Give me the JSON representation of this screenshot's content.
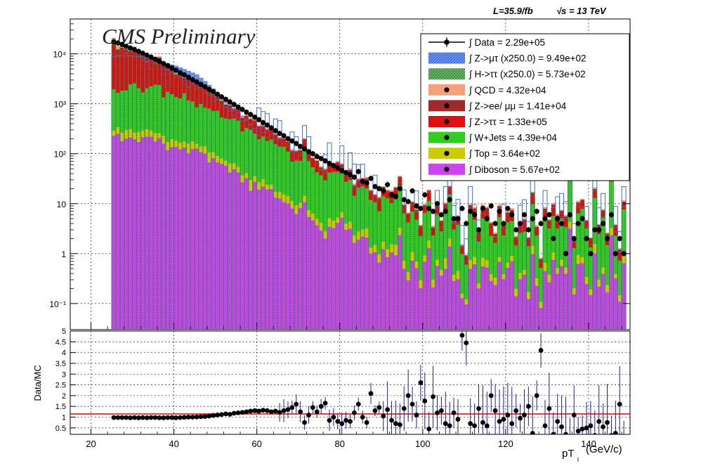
{
  "header": {
    "lumi": "L=35.9/fb",
    "energy": "√s = 13 TeV"
  },
  "branding": {
    "preliminary": "CMS Preliminary"
  },
  "colors": {
    "data": "#000000",
    "signal_mt": "#3b6fd8",
    "signal_htt": "#3a8a3a",
    "qcd": "#f4a07a",
    "zll": "#a02a2a",
    "ztt": "#e01010",
    "wjets": "#33cc22",
    "top": "#cccc00",
    "diboson": "#cc44ee",
    "ratio_line": "#e00000",
    "err_bar": "#1e1e9e"
  },
  "legend": [
    {
      "key": "data",
      "label": "∫ Data = 2.29e+05",
      "style": "marker-line"
    },
    {
      "key": "signal_mt",
      "label": "∫ Z->μτ (x250.0) = 9.49e+02",
      "style": "hatch"
    },
    {
      "key": "signal_htt",
      "label": "∫ H->ττ (x250.0) = 5.73e+02",
      "style": "hatch"
    },
    {
      "key": "qcd",
      "label": "∫ QCD = 4.32e+04",
      "style": "fill-marker"
    },
    {
      "key": "zll",
      "label": "∫ Z->ee/ μμ = 1.41e+04",
      "style": "fill-marker"
    },
    {
      "key": "ztt",
      "label": "∫ Z->ττ = 1.33e+05",
      "style": "fill-marker"
    },
    {
      "key": "wjets",
      "label": "∫ W+Jets = 4.39e+04",
      "style": "fill-marker"
    },
    {
      "key": "top",
      "label": "∫ Top = 3.64e+02",
      "style": "fill-marker"
    },
    {
      "key": "diboson",
      "label": "∫ Diboson = 5.67e+02",
      "style": "fill-marker"
    }
  ],
  "axes": {
    "xlabel": "pT",
    "xlabel_sub": "l",
    "xlabel_unit": "(GeV/c)",
    "ratio_ylabel": "Data/MC",
    "x_ticks": [
      "20",
      "40",
      "60",
      "80",
      "100",
      "120",
      "140"
    ],
    "y_ticks": [
      "10⁻¹",
      "1",
      "10",
      "10²",
      "10³",
      "10⁴"
    ],
    "ratio_ticks": [
      "0.5",
      "1",
      "1.5",
      "2",
      "2.5",
      "3",
      "3.5",
      "4",
      "4.5",
      "5"
    ]
  },
  "chart_data": {
    "type": "histogram-stack",
    "x_range": [
      15,
      150
    ],
    "y_range": [
      0.03,
      50000
    ],
    "y_scale": "log",
    "ratio_range": [
      0.2,
      5.0
    ],
    "bin_width": 1,
    "x_start": 25,
    "x_end": 149,
    "grid": true,
    "legend_position": "top-right",
    "data_points": [
      [
        25.5,
        17500
      ],
      [
        26.5,
        16500
      ],
      [
        27.5,
        15500
      ],
      [
        28.5,
        14200
      ],
      [
        29.5,
        13100
      ],
      [
        30.5,
        12200
      ],
      [
        31.5,
        11200
      ],
      [
        32.5,
        10300
      ],
      [
        33.5,
        9400
      ],
      [
        34.5,
        8600
      ],
      [
        35.5,
        7800
      ],
      [
        36.5,
        7100
      ],
      [
        37.5,
        6400
      ],
      [
        38.5,
        5800
      ],
      [
        39.5,
        5200
      ],
      [
        40.5,
        4700
      ],
      [
        41.5,
        4200
      ],
      [
        42.5,
        3800
      ],
      [
        43.5,
        3400
      ],
      [
        44.5,
        3050
      ],
      [
        45.5,
        2750
      ],
      [
        46.5,
        2450
      ],
      [
        47.5,
        2200
      ],
      [
        48.5,
        1950
      ],
      [
        49.5,
        1750
      ],
      [
        50.5,
        1550
      ],
      [
        51.5,
        1380
      ],
      [
        52.5,
        1230
      ],
      [
        53.5,
        1090
      ],
      [
        54.5,
        970
      ],
      [
        55.5,
        860
      ],
      [
        56.5,
        770
      ],
      [
        57.5,
        680
      ],
      [
        58.5,
        610
      ],
      [
        59.5,
        540
      ],
      [
        60.5,
        480
      ],
      [
        61.5,
        420
      ],
      [
        62.5,
        375
      ],
      [
        63.5,
        330
      ],
      [
        64.5,
        290
      ],
      [
        65.5,
        255
      ],
      [
        66.5,
        230
      ],
      [
        67.5,
        200
      ],
      [
        68.5,
        180
      ],
      [
        69.5,
        160
      ],
      [
        70.5,
        140
      ],
      [
        71.5,
        125
      ],
      [
        72.5,
        110
      ],
      [
        73.5,
        100
      ],
      [
        74.5,
        88
      ],
      [
        75.5,
        80
      ],
      [
        76.5,
        72
      ],
      [
        77.5,
        64
      ],
      [
        78.5,
        58
      ],
      [
        79.5,
        52
      ],
      [
        80.5,
        46
      ],
      [
        81.5,
        42
      ],
      [
        82.5,
        38
      ],
      [
        83.5,
        34
      ],
      [
        84.5,
        44
      ],
      [
        85.5,
        28
      ],
      [
        86.5,
        26
      ],
      [
        87.5,
        32
      ],
      [
        88.5,
        22
      ],
      [
        89.5,
        20
      ],
      [
        90.5,
        18
      ],
      [
        91.5,
        24
      ],
      [
        92.5,
        15
      ],
      [
        93.5,
        14
      ],
      [
        94.5,
        20
      ],
      [
        95.5,
        12
      ],
      [
        96.5,
        11
      ],
      [
        97.5,
        18
      ],
      [
        98.5,
        9
      ],
      [
        99.5,
        8
      ],
      [
        100.5,
        15
      ],
      [
        101.5,
        8
      ],
      [
        102.5,
        7
      ],
      [
        103.5,
        10
      ],
      [
        104.5,
        6
      ],
      [
        105.5,
        7
      ],
      [
        106.5,
        12
      ],
      [
        107.5,
        5
      ],
      [
        108.5,
        5
      ],
      [
        109.5,
        8
      ],
      [
        110.5,
        4
      ],
      [
        111.5,
        7
      ],
      [
        112.5,
        6
      ],
      [
        113.5,
        3
      ],
      [
        114.5,
        8
      ],
      [
        115.5,
        5
      ],
      [
        116.5,
        9
      ],
      [
        117.5,
        4
      ],
      [
        118.5,
        7
      ],
      [
        119.5,
        4
      ],
      [
        120.5,
        8
      ],
      [
        121.5,
        6
      ],
      [
        122.5,
        3
      ],
      [
        123.5,
        4
      ],
      [
        124.5,
        6
      ],
      [
        125.5,
        3
      ],
      [
        126.5,
        5
      ],
      [
        127.5,
        7
      ],
      [
        128.5,
        4
      ],
      [
        129.5,
        5
      ],
      [
        130.5,
        6
      ],
      [
        131.5,
        2
      ],
      [
        132.5,
        5
      ],
      [
        133.5,
        4
      ],
      [
        134.5,
        1
      ],
      [
        135.5,
        6
      ],
      [
        136.5,
        2
      ],
      [
        137.5,
        4
      ],
      [
        138.5,
        5
      ],
      [
        139.5,
        2
      ],
      [
        140.5,
        1
      ],
      [
        141.5,
        3
      ],
      [
        142.5,
        3
      ],
      [
        143.5,
        4
      ],
      [
        144.5,
        2
      ],
      [
        145.5,
        6
      ],
      [
        146.5,
        1
      ],
      [
        147.5,
        2
      ],
      [
        148.5,
        1
      ]
    ],
    "ratio_points": [
      [
        25.5,
        0.98
      ],
      [
        26.5,
        0.98
      ],
      [
        27.5,
        0.98
      ],
      [
        28.5,
        0.98
      ],
      [
        29.5,
        0.97
      ],
      [
        30.5,
        0.98
      ],
      [
        31.5,
        0.97
      ],
      [
        32.5,
        0.98
      ],
      [
        33.5,
        0.97
      ],
      [
        34.5,
        0.98
      ],
      [
        35.5,
        0.98
      ],
      [
        36.5,
        0.97
      ],
      [
        37.5,
        0.97
      ],
      [
        38.5,
        0.98
      ],
      [
        39.5,
        0.98
      ],
      [
        40.5,
        0.97
      ],
      [
        41.5,
        0.98
      ],
      [
        42.5,
        0.99
      ],
      [
        43.5,
        1.0
      ],
      [
        44.5,
        1.0
      ],
      [
        45.5,
        1.01
      ],
      [
        46.5,
        1.02
      ],
      [
        47.5,
        1.03
      ],
      [
        48.5,
        1.05
      ],
      [
        49.5,
        1.08
      ],
      [
        50.5,
        1.1
      ],
      [
        51.5,
        1.12
      ],
      [
        52.5,
        1.15
      ],
      [
        53.5,
        1.13
      ],
      [
        54.5,
        1.18
      ],
      [
        55.5,
        1.2
      ],
      [
        56.5,
        1.22
      ],
      [
        57.5,
        1.25
      ],
      [
        58.5,
        1.28
      ],
      [
        59.5,
        1.3
      ],
      [
        60.5,
        1.28
      ],
      [
        61.5,
        1.32
      ],
      [
        62.5,
        1.3
      ],
      [
        63.5,
        1.25
      ],
      [
        64.5,
        1.28
      ],
      [
        65.5,
        1.22
      ],
      [
        66.5,
        1.3
      ],
      [
        67.5,
        1.35
      ],
      [
        68.5,
        1.45
      ],
      [
        69.5,
        1.6
      ],
      [
        70.5,
        1.25
      ],
      [
        71.5,
        0.75
      ],
      [
        72.5,
        1.1
      ],
      [
        73.5,
        1.45
      ],
      [
        74.5,
        1.25
      ],
      [
        75.5,
        1.5
      ],
      [
        76.5,
        1.65
      ],
      [
        77.5,
        0.85
      ],
      [
        78.5,
        1.0
      ],
      [
        79.5,
        0.8
      ],
      [
        80.5,
        0.7
      ],
      [
        81.5,
        0.85
      ],
      [
        82.5,
        0.8
      ],
      [
        83.5,
        1.2
      ],
      [
        84.5,
        1.6
      ],
      [
        85.5,
        1.0
      ],
      [
        86.5,
        0.75
      ],
      [
        87.5,
        2.1
      ],
      [
        88.5,
        1.3
      ],
      [
        89.5,
        1.45
      ],
      [
        90.5,
        1.05
      ],
      [
        91.5,
        1.35
      ],
      [
        92.5,
        0.85
      ],
      [
        93.5,
        0.7
      ],
      [
        94.5,
        0.65
      ],
      [
        95.5,
        1.4
      ],
      [
        96.5,
        2.0
      ],
      [
        97.5,
        1.6
      ],
      [
        98.5,
        1.1
      ],
      [
        99.5,
        2.6
      ],
      [
        100.5,
        1.75
      ],
      [
        101.5,
        0.45
      ],
      [
        102.5,
        1.95
      ],
      [
        103.5,
        1.2
      ],
      [
        104.5,
        1.3
      ],
      [
        105.5,
        0.7
      ],
      [
        106.5,
        0.6
      ],
      [
        107.5,
        1.2
      ],
      [
        108.5,
        0.9
      ],
      [
        109.5,
        4.8
      ],
      [
        110.5,
        4.45
      ],
      [
        111.5,
        0.7
      ],
      [
        112.5,
        0.6
      ],
      [
        113.5,
        1.4
      ],
      [
        114.5,
        0.75
      ],
      [
        115.5,
        0.6
      ],
      [
        116.5,
        2.0
      ],
      [
        117.5,
        1.3
      ],
      [
        118.5,
        0.8
      ],
      [
        119.5,
        0.9
      ],
      [
        120.5,
        1.1
      ],
      [
        121.5,
        0.7
      ],
      [
        122.5,
        1.3
      ],
      [
        123.5,
        0.95
      ],
      [
        124.5,
        1.1
      ],
      [
        125.5,
        1.5
      ],
      [
        126.5,
        0.25
      ],
      [
        127.5,
        2.0
      ],
      [
        128.5,
        4.1
      ],
      [
        129.5,
        0.6
      ],
      [
        130.5,
        1.4
      ],
      [
        131.5,
        0.2
      ],
      [
        132.5,
        0.8
      ],
      [
        133.5,
        0.55
      ],
      [
        134.5,
        0.2
      ],
      [
        135.5,
        0.1
      ],
      [
        136.5,
        1.1
      ],
      [
        137.5,
        0.35
      ],
      [
        138.5,
        0.45
      ],
      [
        139.5,
        0.5
      ],
      [
        140.5,
        0.6
      ],
      [
        141.5,
        0.15
      ],
      [
        142.5,
        0.8
      ],
      [
        143.5,
        0.55
      ],
      [
        144.5,
        0.75
      ],
      [
        145.5,
        0.15
      ],
      [
        146.5,
        0.25
      ],
      [
        147.5,
        1.6
      ],
      [
        148.5,
        0.1
      ]
    ]
  }
}
